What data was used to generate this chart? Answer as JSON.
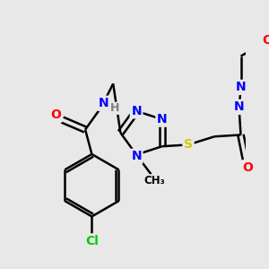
{
  "background_color": "#e8e8e8",
  "atom_colors": {
    "C": "#000000",
    "N": "#0000ff",
    "O": "#ff0000",
    "S": "#cccc00",
    "Cl": "#00cc00",
    "H": "#7f7f7f"
  },
  "bond_color": "#000000",
  "bond_width": 1.8,
  "figsize": [
    3.0,
    3.0
  ],
  "dpi": 100,
  "xlim": [
    0,
    300
  ],
  "ylim": [
    0,
    300
  ]
}
